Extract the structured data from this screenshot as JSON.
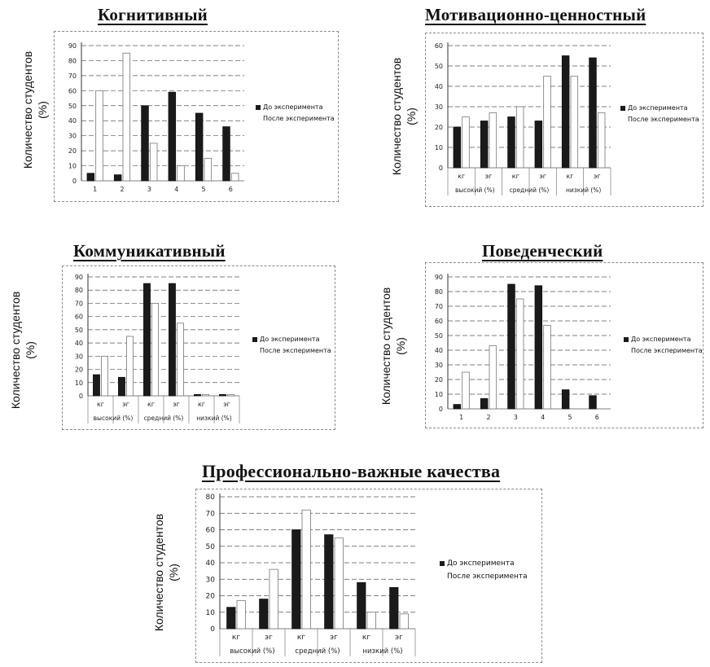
{
  "charts": [
    {
      "title": "Когнитивный",
      "ylabel_line1": "Количество студентов",
      "ylabel_line2": "(%)",
      "legend": [
        "До эксперимента",
        "После эксперимента"
      ]
    },
    {
      "title": "Мотивационно-ценностный",
      "ylabel_line1": "Количество студентов",
      "ylabel_line2": "(%)",
      "legend": [
        "До эксперимента",
        "После эксперимента"
      ]
    },
    {
      "title": "Коммуникативный",
      "ylabel_line1": "Количество студентов",
      "ylabel_line2": "(%)",
      "legend": [
        "До эксперимента",
        "После эксперимента"
      ]
    },
    {
      "title": "Поведенческий",
      "ylabel_line1": "Количество студентов",
      "ylabel_line2": "(%)",
      "legend": [
        "До эксперимента",
        "После эксперимента"
      ]
    },
    {
      "title": "Профессионально-важные качества",
      "ylabel_line1": "Количество студентов",
      "ylabel_line2": "(%)",
      "legend": [
        "До эксперимента",
        "После эксперимента"
      ]
    }
  ],
  "chart_data": [
    {
      "type": "bar",
      "title": "Когнитивный",
      "ylabel": "Количество студентов (%)",
      "categories": [
        "1",
        "2",
        "3",
        "4",
        "5",
        "6"
      ],
      "groups": [],
      "series": [
        {
          "name": "До эксперимента",
          "values": [
            5,
            4,
            50,
            59,
            45,
            36
          ],
          "color": "#1a1a1a"
        },
        {
          "name": "После эксперимента",
          "values": [
            60,
            85,
            25,
            10,
            15,
            5
          ],
          "color": "#ffffff"
        }
      ],
      "ylim": [
        0,
        90
      ],
      "yticks": [
        0,
        10,
        20,
        30,
        40,
        50,
        60,
        70,
        80,
        90
      ],
      "grid": true,
      "legend_position": "right"
    },
    {
      "type": "bar",
      "title": "Мотивационно-ценностный",
      "ylabel": "Количество студентов (%)",
      "categories": [
        "кг",
        "эг",
        "кг",
        "эг",
        "кг",
        "эг"
      ],
      "groups": [
        "высокий (%)",
        "средний (%)",
        "низкий (%)"
      ],
      "series": [
        {
          "name": "До эксперимента",
          "values": [
            20,
            23,
            25,
            23,
            55,
            54
          ],
          "color": "#1a1a1a"
        },
        {
          "name": "После эксперимента",
          "values": [
            25,
            27,
            30,
            45,
            45,
            27
          ],
          "color": "#ffffff"
        }
      ],
      "ylim": [
        0,
        60
      ],
      "yticks": [
        0,
        10,
        20,
        30,
        40,
        50,
        60
      ],
      "grid": true,
      "legend_position": "right"
    },
    {
      "type": "bar",
      "title": "Коммуникативный",
      "ylabel": "Количество студентов (%)",
      "categories": [
        "кг",
        "эг",
        "кг",
        "эг",
        "кг",
        "эг"
      ],
      "groups": [
        "высокий (%)",
        "средний (%)",
        "низкий (%)"
      ],
      "series": [
        {
          "name": "До эксперимента",
          "values": [
            16,
            14,
            85,
            85,
            1,
            1
          ],
          "color": "#1a1a1a"
        },
        {
          "name": "После эксперимента",
          "values": [
            30,
            45,
            70,
            55,
            1,
            1
          ],
          "color": "#ffffff"
        }
      ],
      "ylim": [
        0,
        90
      ],
      "yticks": [
        0,
        10,
        20,
        30,
        40,
        50,
        60,
        70,
        80,
        90
      ],
      "grid": true,
      "legend_position": "right"
    },
    {
      "type": "bar",
      "title": "Поведенческий",
      "ylabel": "Количество студентов (%)",
      "categories": [
        "1",
        "2",
        "3",
        "4",
        "5",
        "6"
      ],
      "groups": [],
      "series": [
        {
          "name": "До эксперимента",
          "values": [
            3,
            7,
            85,
            84,
            13,
            9
          ],
          "color": "#1a1a1a"
        },
        {
          "name": "После эксперимента",
          "values": [
            25,
            43,
            75,
            57,
            0,
            0
          ],
          "color": "#ffffff"
        }
      ],
      "ylim": [
        0,
        90
      ],
      "yticks": [
        0,
        10,
        20,
        30,
        40,
        50,
        60,
        70,
        80,
        90
      ],
      "grid": true,
      "legend_position": "right"
    },
    {
      "type": "bar",
      "title": "Профессионально-важные качества",
      "ylabel": "Количество студентов (%)",
      "categories": [
        "кг",
        "эг",
        "кг",
        "эг",
        "кг",
        "эг"
      ],
      "groups": [
        "высокий (%)",
        "средний (%)",
        "низкий (%)"
      ],
      "series": [
        {
          "name": "До эксперимента",
          "values": [
            13,
            18,
            60,
            57,
            28,
            25
          ],
          "color": "#1a1a1a"
        },
        {
          "name": "После эксперимента",
          "values": [
            17,
            36,
            72,
            55,
            10,
            9
          ],
          "color": "#ffffff"
        }
      ],
      "ylim": [
        0,
        80
      ],
      "yticks": [
        0,
        10,
        20,
        30,
        40,
        50,
        60,
        70,
        80
      ],
      "grid": true,
      "legend_position": "right"
    }
  ]
}
